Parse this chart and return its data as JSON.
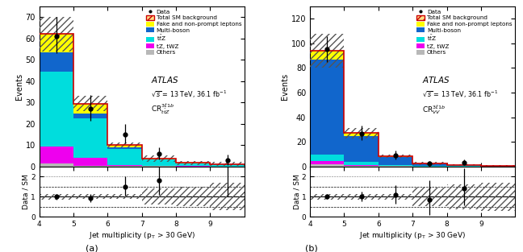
{
  "panel_a": {
    "title_line1": "ATLAS",
    "title_line2": "$\\sqrt{s}$ = 13 TeV, 36.1 fb$^{-1}$",
    "title_line3": "CR$^{3\\ell 1b}_{t\\bar{t}Z}$",
    "bins": [
      4,
      5,
      6,
      7,
      8,
      9,
      10
    ],
    "stacks": {
      "Others": [
        1.5,
        0.5,
        0.3,
        0.2,
        0.15,
        0.1
      ],
      "tZ_tWZ": [
        8.0,
        3.5,
        0.5,
        0.2,
        0.1,
        0.05
      ],
      "ttZ": [
        35.0,
        18.5,
        7.5,
        2.8,
        1.3,
        1.0
      ],
      "Multiboson": [
        9.0,
        2.5,
        0.8,
        0.3,
        0.1,
        0.05
      ],
      "Fake": [
        8.5,
        4.5,
        1.0,
        0.3,
        0.1,
        0.05
      ]
    },
    "total_sm": [
      62.0,
      29.5,
      10.1,
      3.8,
      1.75,
      1.25
    ],
    "total_unc": [
      8.0,
      3.5,
      1.2,
      1.5,
      0.85,
      0.85
    ],
    "data_x": [
      4.5,
      5.5,
      6.5,
      7.5,
      9.5
    ],
    "data_y": [
      61.0,
      27.0,
      15.0,
      6.0,
      3.0
    ],
    "data_yerr_up": [
      9.0,
      6.5,
      5.0,
      3.2,
      2.8
    ],
    "data_yerr_dn": [
      8.0,
      5.5,
      4.2,
      2.6,
      2.2
    ],
    "ratio_x": [
      4.5,
      5.5,
      6.5,
      7.5,
      9.5
    ],
    "ratio_y": [
      1.0,
      0.92,
      1.5,
      1.8,
      2.8
    ],
    "ratio_yerr_up": [
      0.15,
      0.23,
      0.52,
      0.85,
      2.2
    ],
    "ratio_yerr_dn": [
      0.13,
      0.2,
      0.44,
      0.7,
      1.8
    ],
    "ylim": [
      0,
      75
    ],
    "yticks": [
      0,
      10,
      20,
      30,
      40,
      50,
      60,
      70
    ],
    "ylabel": "Events"
  },
  "panel_b": {
    "title_line1": "ATLAS",
    "title_line2": "$\\sqrt{s}$ = 13 TeV, 36.1 fb$^{-1}$",
    "title_line3": "CR$^{3\\ell 1b}_{VV}$",
    "bins": [
      4,
      5,
      6,
      7,
      8,
      9,
      10
    ],
    "stacks": {
      "Others": [
        2.0,
        0.8,
        0.3,
        0.15,
        0.1,
        0.05
      ],
      "tZ_tWZ": [
        2.5,
        0.8,
        0.2,
        0.1,
        0.05,
        0.02
      ],
      "ttZ": [
        5.5,
        2.0,
        0.8,
        0.3,
        0.15,
        0.08
      ],
      "Multiboson": [
        77.0,
        21.5,
        6.5,
        1.8,
        0.9,
        0.5
      ],
      "Fake": [
        7.0,
        2.0,
        0.5,
        0.2,
        0.1,
        0.05
      ]
    },
    "total_sm": [
      94.0,
      27.1,
      8.3,
      2.55,
      1.3,
      0.7
    ],
    "total_unc": [
      14.0,
      4.0,
      1.2,
      1.2,
      0.8,
      0.5
    ],
    "data_x": [
      4.5,
      5.5,
      6.5,
      7.5,
      8.5
    ],
    "data_y": [
      95.0,
      27.0,
      9.0,
      2.5,
      3.5
    ],
    "data_yerr_up": [
      11.0,
      6.5,
      4.0,
      2.3,
      2.6
    ],
    "data_yerr_dn": [
      10.0,
      5.5,
      3.3,
      1.8,
      2.1
    ],
    "ratio_x": [
      4.5,
      5.5,
      6.5,
      7.5,
      8.5
    ],
    "ratio_y": [
      1.01,
      1.0,
      1.08,
      0.85,
      1.4
    ],
    "ratio_yerr_up": [
      0.12,
      0.25,
      0.5,
      0.95,
      1.0
    ],
    "ratio_yerr_dn": [
      0.11,
      0.22,
      0.42,
      0.75,
      0.85
    ],
    "ylim": [
      0,
      130
    ],
    "yticks": [
      0,
      20,
      40,
      60,
      80,
      100,
      120
    ],
    "ylabel": "Events"
  },
  "colors": {
    "Others": "#b8b8b8",
    "tZ_tWZ": "#ee00ee",
    "ttZ": "#00dddd",
    "Multiboson": "#1166cc",
    "Fake": "#ffff00",
    "total_sm_line": "#cc0000"
  },
  "xlabel": "Jet multiplicity (p$_{\\mathrm{T}}$ > 30 GeV)",
  "ratio_ylim": [
    0,
    2.5
  ],
  "ratio_yticks": [
    0,
    1,
    2
  ],
  "ratio_ylabel": "Data / SM"
}
